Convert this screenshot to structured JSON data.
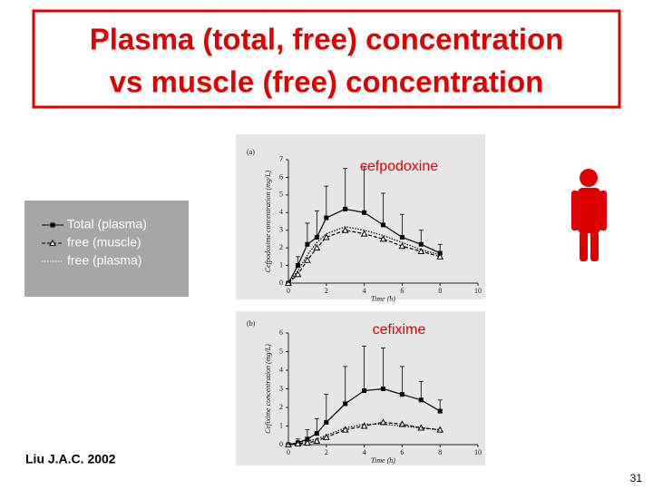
{
  "slide": {
    "title_lines": [
      "Plasma (total, free) concentration",
      "vs muscle (free) concentration"
    ],
    "citation": "Liu J.A.C. 2002",
    "page_number": "31"
  },
  "chart_data": [
    {
      "type": "line",
      "panel": "(a)",
      "annotation": "cefpodoxine",
      "x_label": "Time (h)",
      "y_label": "Cefpodoxime concentration (mg/L)",
      "x": [
        0,
        0.5,
        1,
        1.5,
        2,
        3,
        4,
        5,
        6,
        7,
        8
      ],
      "xlim": [
        0,
        10
      ],
      "xticks": [
        0,
        2,
        4,
        6,
        8,
        10
      ],
      "ylim": [
        0,
        7
      ],
      "yticks": [
        0,
        1,
        2,
        3,
        4,
        5,
        6,
        7
      ],
      "series": [
        {
          "name": "Total (plasma)",
          "color": "#000000",
          "marker": "square",
          "line_style": "solid",
          "values": [
            0,
            1.0,
            2.2,
            2.6,
            3.7,
            4.2,
            4.0,
            3.3,
            2.6,
            2.2,
            1.7
          ],
          "errors": [
            0,
            0.5,
            1.2,
            1.5,
            1.8,
            2.3,
            2.6,
            1.8,
            1.3,
            0.8,
            0.5
          ]
        },
        {
          "name": "free (muscle)",
          "color": "#000000",
          "marker": "triangle",
          "line_style": "dashed",
          "values": [
            0,
            0.5,
            1.3,
            2.0,
            2.6,
            3.0,
            2.8,
            2.5,
            2.1,
            1.8,
            1.5
          ]
        },
        {
          "name": "free (plasma)",
          "color": "#000000",
          "marker": "none",
          "line_style": "dotted",
          "values": [
            0,
            0.7,
            1.6,
            2.3,
            2.8,
            3.2,
            3.0,
            2.7,
            2.3,
            1.9,
            1.6
          ]
        }
      ]
    },
    {
      "type": "line",
      "panel": "(b)",
      "annotation": "cefixime",
      "x_label": "Time (h)",
      "y_label": "Cefixime concentration (mg/L)",
      "x": [
        0,
        0.5,
        1,
        1.5,
        2,
        3,
        4,
        5,
        6,
        7,
        8
      ],
      "xlim": [
        0,
        10
      ],
      "xticks": [
        0,
        2,
        4,
        6,
        8,
        10
      ],
      "ylim": [
        0,
        6
      ],
      "yticks": [
        0,
        1,
        2,
        3,
        4,
        5,
        6
      ],
      "series": [
        {
          "name": "Total (plasma)",
          "color": "#000000",
          "marker": "square",
          "line_style": "solid",
          "values": [
            0,
            0.1,
            0.3,
            0.6,
            1.2,
            2.2,
            2.9,
            3.0,
            2.7,
            2.4,
            1.8
          ],
          "errors": [
            0,
            0.2,
            0.5,
            0.8,
            1.5,
            2.0,
            2.4,
            2.2,
            1.5,
            1.0,
            0.6
          ]
        },
        {
          "name": "free (muscle)",
          "color": "#000000",
          "marker": "triangle",
          "line_style": "dashed",
          "values": [
            0,
            0.05,
            0.1,
            0.2,
            0.4,
            0.8,
            1.0,
            1.2,
            1.1,
            0.9,
            0.8
          ]
        },
        {
          "name": "free (plasma)",
          "color": "#000000",
          "marker": "none",
          "line_style": "dotted",
          "values": [
            0,
            0.1,
            0.2,
            0.3,
            0.5,
            0.9,
            1.1,
            1.1,
            1.0,
            0.9,
            0.8
          ]
        }
      ]
    }
  ]
}
